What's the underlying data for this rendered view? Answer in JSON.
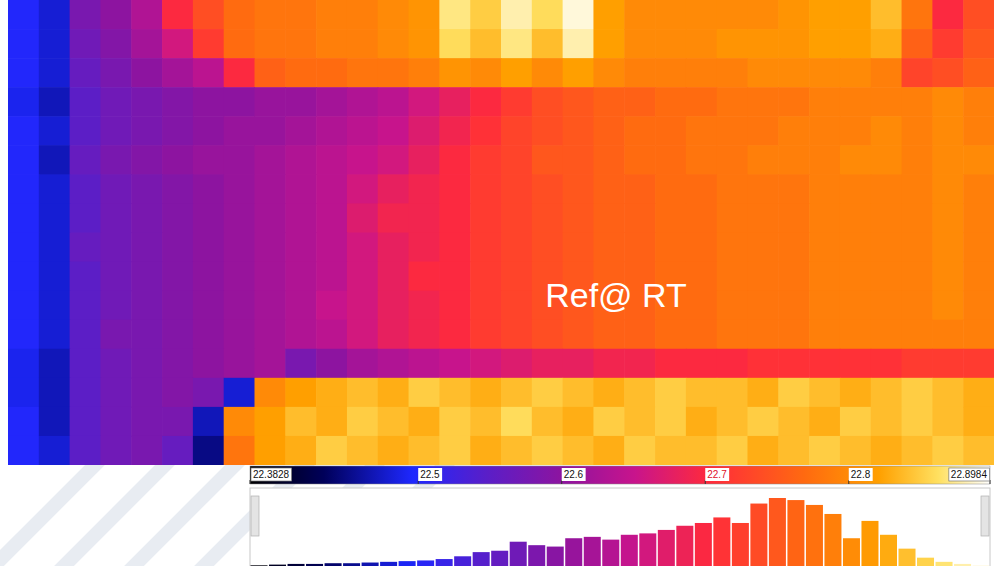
{
  "chart_data": {
    "type": "heatmap",
    "annotation": "Ref@ RT",
    "cells": [
      [
        22.5,
        22.48,
        22.58,
        22.6,
        22.63,
        22.7,
        22.74,
        22.77,
        22.78,
        22.78,
        22.79,
        22.79,
        22.8,
        22.81,
        22.87,
        22.85,
        22.88,
        22.86,
        22.89,
        22.82,
        22.8,
        22.8,
        22.8,
        22.8,
        22.8,
        22.81,
        22.82,
        22.82,
        22.84,
        22.78,
        22.7,
        22.74
      ],
      [
        22.5,
        22.48,
        22.57,
        22.59,
        22.62,
        22.66,
        22.72,
        22.77,
        22.78,
        22.78,
        22.79,
        22.79,
        22.8,
        22.81,
        22.86,
        22.84,
        22.87,
        22.84,
        22.88,
        22.82,
        22.8,
        22.8,
        22.8,
        22.81,
        22.81,
        22.81,
        22.82,
        22.82,
        22.83,
        22.76,
        22.72,
        22.75
      ],
      [
        22.5,
        22.48,
        22.56,
        22.58,
        22.6,
        22.62,
        22.64,
        22.7,
        22.76,
        22.77,
        22.77,
        22.78,
        22.78,
        22.79,
        22.81,
        22.8,
        22.82,
        22.8,
        22.82,
        22.8,
        22.79,
        22.79,
        22.79,
        22.79,
        22.8,
        22.8,
        22.8,
        22.8,
        22.79,
        22.73,
        22.74,
        22.76
      ],
      [
        22.49,
        22.47,
        22.55,
        22.57,
        22.58,
        22.59,
        22.6,
        22.6,
        22.61,
        22.61,
        22.62,
        22.63,
        22.64,
        22.66,
        22.68,
        22.7,
        22.72,
        22.74,
        22.75,
        22.76,
        22.76,
        22.77,
        22.77,
        22.78,
        22.78,
        22.78,
        22.79,
        22.79,
        22.79,
        22.79,
        22.8,
        22.79
      ],
      [
        22.5,
        22.48,
        22.55,
        22.57,
        22.58,
        22.59,
        22.6,
        22.61,
        22.61,
        22.62,
        22.63,
        22.64,
        22.65,
        22.67,
        22.69,
        22.71,
        22.73,
        22.74,
        22.75,
        22.76,
        22.77,
        22.77,
        22.78,
        22.78,
        22.78,
        22.79,
        22.79,
        22.79,
        22.8,
        22.79,
        22.8,
        22.79
      ],
      [
        22.5,
        22.47,
        22.56,
        22.58,
        22.59,
        22.6,
        22.61,
        22.61,
        22.62,
        22.63,
        22.64,
        22.65,
        22.66,
        22.68,
        22.7,
        22.72,
        22.73,
        22.75,
        22.75,
        22.76,
        22.77,
        22.77,
        22.78,
        22.78,
        22.79,
        22.79,
        22.79,
        22.8,
        22.8,
        22.79,
        22.8,
        22.8
      ],
      [
        22.5,
        22.48,
        22.55,
        22.57,
        22.58,
        22.59,
        22.6,
        22.61,
        22.62,
        22.63,
        22.64,
        22.66,
        22.68,
        22.69,
        22.7,
        22.72,
        22.73,
        22.74,
        22.75,
        22.76,
        22.76,
        22.77,
        22.77,
        22.78,
        22.78,
        22.78,
        22.79,
        22.79,
        22.79,
        22.79,
        22.8,
        22.79
      ],
      [
        22.5,
        22.48,
        22.55,
        22.57,
        22.58,
        22.59,
        22.6,
        22.61,
        22.62,
        22.63,
        22.64,
        22.67,
        22.69,
        22.69,
        22.7,
        22.72,
        22.73,
        22.74,
        22.75,
        22.76,
        22.76,
        22.77,
        22.77,
        22.78,
        22.78,
        22.78,
        22.79,
        22.79,
        22.79,
        22.79,
        22.8,
        22.79
      ],
      [
        22.5,
        22.48,
        22.56,
        22.57,
        22.58,
        22.59,
        22.6,
        22.61,
        22.62,
        22.63,
        22.64,
        22.66,
        22.68,
        22.69,
        22.7,
        22.72,
        22.73,
        22.74,
        22.75,
        22.76,
        22.76,
        22.77,
        22.77,
        22.78,
        22.78,
        22.78,
        22.79,
        22.79,
        22.79,
        22.79,
        22.8,
        22.79
      ],
      [
        22.5,
        22.48,
        22.55,
        22.57,
        22.58,
        22.59,
        22.6,
        22.61,
        22.62,
        22.63,
        22.64,
        22.66,
        22.68,
        22.7,
        22.7,
        22.72,
        22.73,
        22.74,
        22.75,
        22.76,
        22.76,
        22.77,
        22.77,
        22.78,
        22.78,
        22.78,
        22.79,
        22.79,
        22.79,
        22.79,
        22.8,
        22.79
      ],
      [
        22.5,
        22.48,
        22.55,
        22.57,
        22.58,
        22.59,
        22.6,
        22.61,
        22.62,
        22.63,
        22.65,
        22.66,
        22.68,
        22.69,
        22.7,
        22.72,
        22.73,
        22.74,
        22.75,
        22.76,
        22.76,
        22.77,
        22.77,
        22.78,
        22.78,
        22.78,
        22.79,
        22.79,
        22.79,
        22.79,
        22.8,
        22.79
      ],
      [
        22.5,
        22.48,
        22.55,
        22.58,
        22.58,
        22.59,
        22.6,
        22.61,
        22.62,
        22.63,
        22.64,
        22.66,
        22.68,
        22.69,
        22.7,
        22.72,
        22.73,
        22.74,
        22.75,
        22.76,
        22.76,
        22.77,
        22.77,
        22.78,
        22.78,
        22.78,
        22.79,
        22.79,
        22.79,
        22.79,
        22.79,
        22.79
      ],
      [
        22.49,
        22.47,
        22.55,
        22.57,
        22.58,
        22.59,
        22.6,
        22.61,
        22.62,
        22.58,
        22.6,
        22.62,
        22.63,
        22.64,
        22.65,
        22.66,
        22.67,
        22.68,
        22.68,
        22.69,
        22.69,
        22.7,
        22.7,
        22.7,
        22.71,
        22.71,
        22.71,
        22.71,
        22.71,
        22.72,
        22.72,
        22.72
      ],
      [
        22.49,
        22.47,
        22.55,
        22.57,
        22.58,
        22.59,
        22.58,
        22.48,
        22.8,
        22.82,
        22.83,
        22.84,
        22.83,
        22.85,
        22.84,
        22.83,
        22.84,
        22.85,
        22.84,
        22.83,
        22.84,
        22.85,
        22.84,
        22.84,
        22.83,
        22.85,
        22.84,
        22.83,
        22.84,
        22.85,
        22.84,
        22.83
      ],
      [
        22.5,
        22.47,
        22.55,
        22.57,
        22.58,
        22.58,
        22.47,
        22.8,
        22.82,
        22.84,
        22.83,
        22.85,
        22.84,
        22.83,
        22.85,
        22.84,
        22.86,
        22.84,
        22.83,
        22.85,
        22.84,
        22.85,
        22.83,
        22.84,
        22.85,
        22.84,
        22.83,
        22.85,
        22.84,
        22.85,
        22.84,
        22.83
      ],
      [
        22.5,
        22.48,
        22.55,
        22.57,
        22.58,
        22.56,
        22.45,
        22.78,
        22.82,
        22.83,
        22.85,
        22.84,
        22.83,
        22.84,
        22.85,
        22.83,
        22.84,
        22.85,
        22.84,
        22.83,
        22.85,
        22.84,
        22.84,
        22.85,
        22.83,
        22.84,
        22.85,
        22.84,
        22.83,
        22.84,
        22.85,
        22.84
      ]
    ],
    "colorbar": {
      "range": [
        22.3828,
        22.8984
      ],
      "ticks": [
        22.3828,
        22.5,
        22.6,
        22.7,
        22.8,
        22.8984
      ]
    },
    "histogram": {
      "bins": [
        22.3828,
        22.3957,
        22.4086,
        22.4215,
        22.4344,
        22.4473,
        22.4602,
        22.4731,
        22.486,
        22.4989,
        22.5118,
        22.5247,
        22.5376,
        22.5505,
        22.5634,
        22.5763,
        22.5892,
        22.6021,
        22.615,
        22.6279,
        22.6408,
        22.6537,
        22.6666,
        22.6795,
        22.6924,
        22.7053,
        22.7182,
        22.7311,
        22.744,
        22.7569,
        22.7698,
        22.7827,
        22.7956,
        22.8085,
        22.8214,
        22.8343,
        22.8472,
        22.8601,
        22.873,
        22.8859,
        22.8984
      ],
      "counts": [
        1,
        2,
        3,
        3,
        4,
        4,
        5,
        6,
        7,
        8,
        10,
        14,
        20,
        22,
        35,
        30,
        28,
        40,
        42,
        38,
        45,
        47,
        52,
        58,
        62,
        70,
        62,
        90,
        98,
        95,
        88,
        75,
        40,
        65,
        45,
        25,
        12,
        6,
        3,
        1
      ]
    }
  }
}
